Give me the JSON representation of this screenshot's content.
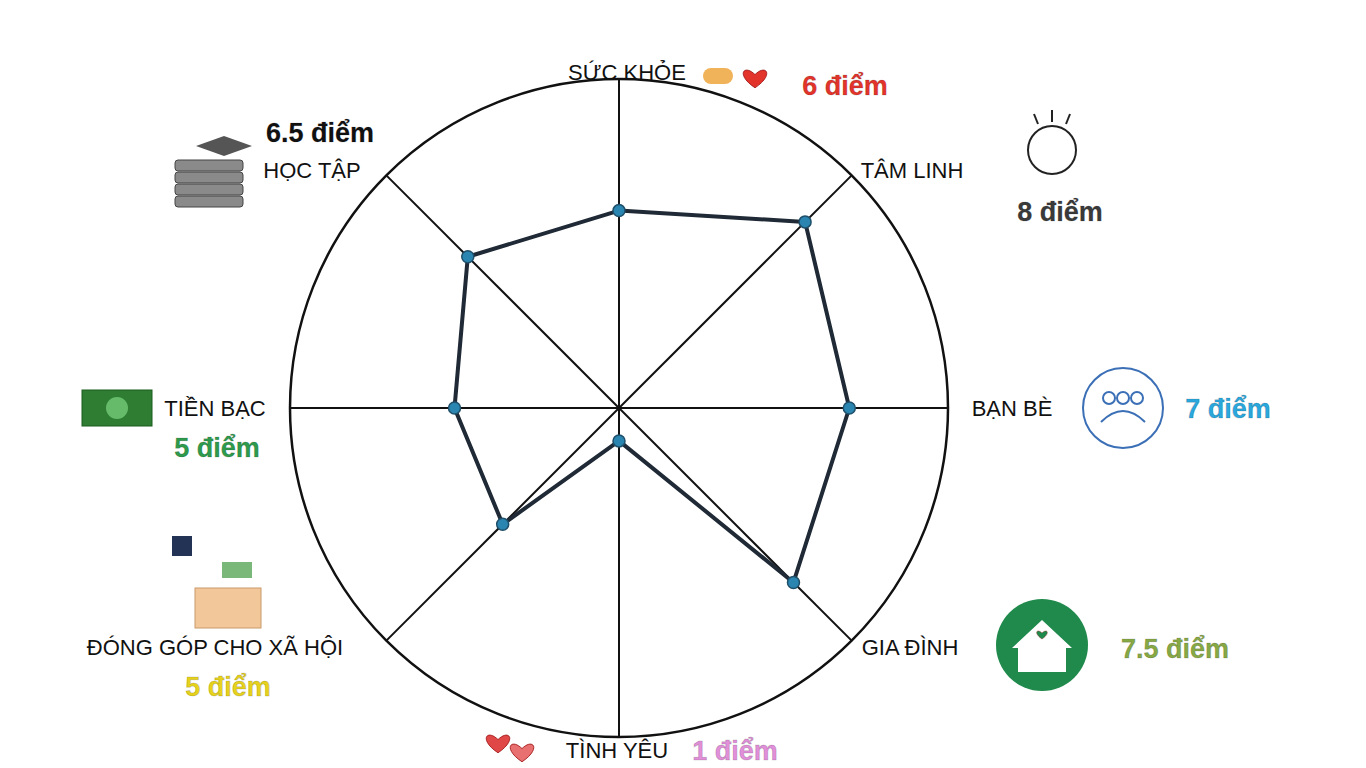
{
  "chart_data": {
    "type": "radar",
    "categories": [
      "SỨC KHỎE",
      "TÂM LINH",
      "BẠN BÈ",
      "GIA ĐÌNH",
      "TÌNH YÊU",
      "ĐÓNG GÓP CHO XÃ HỘI",
      "TIỀN BẠC",
      "HỌC TẬP"
    ],
    "values": [
      6,
      8,
      7,
      7.5,
      1,
      5,
      5,
      6.5
    ],
    "value_labels": [
      "6 điểm",
      "8 điểm",
      "7 điểm",
      "7.5 điểm",
      "1 điểm",
      "5 điểm",
      "5 điểm",
      "6.5 điểm"
    ],
    "ylim": [
      0,
      10
    ],
    "tick_labels": false,
    "data_labels": true,
    "marker": "circle",
    "color": "#1f2a36",
    "colors": [
      "#e2342b",
      "#3a3a3a",
      "#2aa7dc",
      "#86a845",
      "#e08fd8",
      "#e6d21c",
      "#2e9a4c",
      "#111111"
    ]
  }
}
